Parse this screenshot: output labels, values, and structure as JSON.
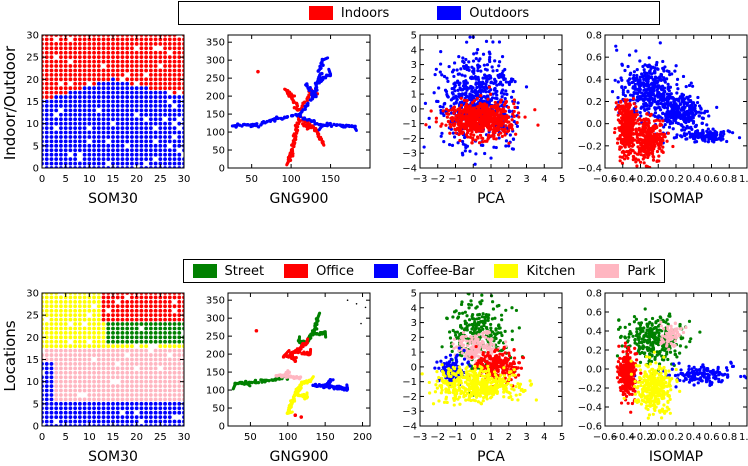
{
  "rows": [
    {
      "row_label": "Indoor/Outdoor",
      "legend": [
        {
          "label": "Indoors",
          "color": "#ff0000"
        },
        {
          "label": "Outdoors",
          "color": "#0000ff"
        }
      ]
    },
    {
      "row_label": "Locations",
      "legend": [
        {
          "label": "Street",
          "color": "#008000"
        },
        {
          "label": "Office",
          "color": "#ff0000"
        },
        {
          "label": "Coffee-Bar",
          "color": "#0000ff"
        },
        {
          "label": "Kitchen",
          "color": "#ffff00"
        },
        {
          "label": "Park",
          "color": "#ffb6c1"
        }
      ]
    }
  ],
  "chart_data": [
    {
      "type": "scatter",
      "row": 0,
      "xlabel": "SOM30",
      "ylabel": "",
      "xlim": [
        0,
        30
      ],
      "ylim": [
        0,
        30
      ],
      "xticks": [
        "0",
        "5",
        "10",
        "15",
        "20",
        "25",
        "30"
      ],
      "yticks": [
        "0",
        "5",
        "10",
        "15",
        "20",
        "25",
        "30"
      ],
      "series": [
        {
          "name": "Indoors",
          "color": "#ff0000",
          "region": "upper grid cells (y above boundary ~15 at x=0, ~20 at x=15, ~16 at x=30)"
        },
        {
          "name": "Outdoors",
          "color": "#0000ff",
          "region": "lower grid cells"
        }
      ]
    },
    {
      "type": "scatter",
      "row": 0,
      "xlabel": "GNG900",
      "ylabel": "",
      "xlim": [
        20,
        200
      ],
      "ylim": [
        0,
        370
      ],
      "xticks": [
        "50",
        "100",
        "150"
      ],
      "yticks": [
        "0",
        "50",
        "100",
        "150",
        "200",
        "250",
        "300",
        "350"
      ],
      "series": [
        {
          "name": "Indoors",
          "color": "#ff0000",
          "branches": [
            [
              [
                110,
                140
              ],
              [
                105,
                90
              ],
              [
                100,
                40
              ],
              [
                97,
                20
              ]
            ],
            [
              [
                110,
                160
              ],
              [
                100,
                200
              ],
              [
                95,
                215
              ]
            ],
            [
              [
                112,
                160
              ],
              [
                125,
                215
              ],
              [
                130,
                205
              ]
            ],
            [
              [
                115,
                135
              ],
              [
                130,
                110
              ],
              [
                140,
                70
              ]
            ],
            [
              [
                115,
                120
              ],
              [
                125,
                115
              ]
            ]
          ],
          "points": [
            [
              58,
              268
            ]
          ]
        },
        {
          "name": "Outdoors",
          "color": "#0000ff",
          "branches": [
            [
              [
                110,
                150
              ],
              [
                80,
                135
              ],
              [
                55,
                120
              ],
              [
                30,
                118
              ]
            ],
            [
              [
                110,
                150
              ],
              [
                130,
                200
              ],
              [
                135,
                250
              ],
              [
                140,
                300
              ]
            ],
            [
              [
                112,
                140
              ],
              [
                140,
                120
              ],
              [
                165,
                118
              ],
              [
                180,
                115
              ]
            ],
            [
              [
                130,
                200
              ],
              [
                120,
                230
              ]
            ],
            [
              [
                135,
                240
              ],
              [
                150,
                260
              ]
            ]
          ],
          "points": []
        }
      ]
    },
    {
      "type": "scatter",
      "row": 0,
      "xlabel": "PCA",
      "ylabel": "",
      "xlim": [
        -3,
        5
      ],
      "ylim": [
        -4,
        5
      ],
      "xticks": [
        "−3",
        "−2",
        "−1",
        "0",
        "1",
        "2",
        "3",
        "4",
        "5"
      ],
      "yticks": [
        "−4",
        "−3",
        "−2",
        "−1",
        "0",
        "1",
        "2",
        "3",
        "4",
        "5"
      ],
      "series": [
        {
          "name": "Outdoors",
          "color": "#0000ff",
          "clusters": [
            {
              "center": [
                0.3,
                0.5
              ],
              "spread": [
                1.0,
                1.5
              ],
              "n": 650
            }
          ]
        },
        {
          "name": "Indoors",
          "color": "#ff0000",
          "clusters": [
            {
              "center": [
                0.4,
                -0.7
              ],
              "spread": [
                0.9,
                0.6
              ],
              "n": 650
            }
          ]
        }
      ]
    },
    {
      "type": "scatter",
      "row": 0,
      "xlabel": "ISOMAP",
      "ylabel": "",
      "xlim": [
        -0.6,
        1.0
      ],
      "ylim": [
        -0.4,
        0.8
      ],
      "xticks": [
        "−0.6",
        "−0.4",
        "−0.2",
        "0.0",
        "0.2",
        "0.4",
        "0.6",
        "0.8",
        "1.0"
      ],
      "yticks": [
        "−0.4",
        "−0.2",
        "0.0",
        "0.2",
        "0.4",
        "0.6",
        "0.8"
      ],
      "series": [
        {
          "name": "Outdoors",
          "color": "#0000ff",
          "clusters": [
            {
              "center": [
                -0.1,
                0.3
              ],
              "spread": [
                0.17,
                0.12
              ],
              "n": 380
            },
            {
              "center": [
                0.25,
                0.1
              ],
              "spread": [
                0.14,
                0.08
              ],
              "n": 260
            },
            {
              "center": [
                0.55,
                -0.1
              ],
              "spread": [
                0.14,
                0.03
              ],
              "n": 120
            }
          ]
        },
        {
          "name": "Indoors",
          "color": "#ff0000",
          "clusters": [
            {
              "center": [
                -0.35,
                -0.05
              ],
              "spread": [
                0.05,
                0.12
              ],
              "n": 320
            },
            {
              "center": [
                -0.1,
                -0.15
              ],
              "spread": [
                0.08,
                0.1
              ],
              "n": 280
            }
          ]
        }
      ]
    },
    {
      "type": "scatter",
      "row": 1,
      "xlabel": "SOM30",
      "ylabel": "",
      "xlim": [
        0,
        30
      ],
      "ylim": [
        0,
        30
      ],
      "xticks": [
        "0",
        "5",
        "10",
        "15",
        "20",
        "25",
        "30"
      ],
      "yticks": [
        "0",
        "5",
        "10",
        "15",
        "20",
        "25",
        "30"
      ],
      "series": [
        {
          "name": "Street",
          "color": "#008000",
          "region": "right-middle band (x 14-30, y 19-25)"
        },
        {
          "name": "Office",
          "color": "#ff0000",
          "region": "upper right (x 13-30, y 24-30)"
        },
        {
          "name": "Coffee-Bar",
          "color": "#0000ff",
          "region": "bottom and left edge (y below ~5, x below ~2)"
        },
        {
          "name": "Kitchen",
          "color": "#ffff00",
          "region": "upper left (x 0-12, y 18-30)"
        },
        {
          "name": "Park",
          "color": "#ffb6c1",
          "region": "middle band (y 6-17)"
        }
      ]
    },
    {
      "type": "scatter",
      "row": 1,
      "xlabel": "GNG900",
      "ylabel": "",
      "xlim": [
        20,
        210
      ],
      "ylim": [
        0,
        370
      ],
      "xticks": [
        "50",
        "100",
        "150",
        "200"
      ],
      "yticks": [
        "0",
        "50",
        "100",
        "150",
        "200",
        "250",
        "300",
        "350"
      ],
      "series": [
        {
          "name": "Street",
          "color": "#008000",
          "branches": [
            [
              [
                100,
                135
              ],
              [
                70,
                125
              ],
              [
                45,
                120
              ],
              [
                30,
                118
              ]
            ],
            [
              [
                125,
                230
              ],
              [
                135,
                260
              ],
              [
                140,
                300
              ]
            ],
            [
              [
                125,
                230
              ],
              [
                115,
                235
              ]
            ],
            [
              [
                135,
                255
              ],
              [
                150,
                260
              ]
            ]
          ],
          "points": []
        },
        {
          "name": "Office",
          "color": "#ff0000",
          "branches": [
            [
              [
                110,
                180
              ],
              [
                105,
                200
              ],
              [
                115,
                215
              ],
              [
                125,
                230
              ]
            ],
            [
              [
                110,
                190
              ],
              [
                95,
                195
              ]
            ],
            [
              [
                115,
                205
              ],
              [
                130,
                200
              ]
            ]
          ],
          "points": [
            [
              58,
              265
            ],
            [
              110,
              30
            ],
            [
              118,
              25
            ]
          ]
        },
        {
          "name": "Coffee-Bar",
          "color": "#0000ff",
          "branches": [
            [
              [
                135,
                115
              ],
              [
                150,
                110
              ],
              [
                165,
                108
              ],
              [
                180,
                102
              ]
            ],
            [
              [
                150,
                110
              ],
              [
                155,
                125
              ]
            ]
          ],
          "points": []
        },
        {
          "name": "Kitchen",
          "color": "#ffff00",
          "branches": [
            [
              [
                120,
                120
              ],
              [
                110,
                90
              ],
              [
                105,
                60
              ],
              [
                100,
                35
              ]
            ],
            [
              [
                110,
                90
              ],
              [
                125,
                80
              ]
            ],
            [
              [
                120,
                120
              ],
              [
                130,
                125
              ]
            ]
          ],
          "points": []
        },
        {
          "name": "Park",
          "color": "#ffb6c1",
          "branches": [
            [
              [
                85,
                140
              ],
              [
                100,
                138
              ],
              [
                115,
                135
              ]
            ],
            [
              [
                95,
                140
              ],
              [
                100,
                150
              ]
            ]
          ],
          "points": []
        }
      ]
    },
    {
      "type": "scatter",
      "row": 1,
      "xlabel": "PCA",
      "ylabel": "",
      "xlim": [
        -3,
        5
      ],
      "ylim": [
        -4,
        5
      ],
      "xticks": [
        "−3",
        "−2",
        "−1",
        "0",
        "1",
        "2",
        "3",
        "4",
        "5"
      ],
      "yticks": [
        "−4",
        "−3",
        "−2",
        "−1",
        "0",
        "1",
        "2",
        "3",
        "4",
        "5"
      ],
      "series": [
        {
          "name": "Street",
          "color": "#008000",
          "clusters": [
            {
              "center": [
                0.3,
                2.2
              ],
              "spread": [
                0.8,
                1.3
              ],
              "n": 280
            }
          ]
        },
        {
          "name": "Park",
          "color": "#ffb6c1",
          "clusters": [
            {
              "center": [
                0.3,
                1.3
              ],
              "spread": [
                0.6,
                0.5
              ],
              "n": 160
            }
          ]
        },
        {
          "name": "Office",
          "color": "#ff0000",
          "clusters": [
            {
              "center": [
                1.3,
                0.0
              ],
              "spread": [
                0.6,
                0.5
              ],
              "n": 220
            }
          ]
        },
        {
          "name": "Coffee-Bar",
          "color": "#0000ff",
          "clusters": [
            {
              "center": [
                -1.2,
                -0.2
              ],
              "spread": [
                0.35,
                0.45
              ],
              "n": 140
            }
          ]
        },
        {
          "name": "Kitchen",
          "color": "#ffff00",
          "clusters": [
            {
              "center": [
                0.2,
                -1.2
              ],
              "spread": [
                1.1,
                0.55
              ],
              "n": 450
            }
          ]
        }
      ]
    },
    {
      "type": "scatter",
      "row": 1,
      "xlabel": "ISOMAP",
      "ylabel": "",
      "xlim": [
        -0.6,
        1.0
      ],
      "ylim": [
        -0.6,
        0.8
      ],
      "xticks": [
        "−0.6",
        "−0.4",
        "−0.2",
        "0.0",
        "0.2",
        "0.4",
        "0.6",
        "0.8",
        "1.0"
      ],
      "yticks": [
        "−0.6",
        "−0.4",
        "−0.2",
        "0.0",
        "0.2",
        "0.4",
        "0.6",
        "0.8"
      ],
      "series": [
        {
          "name": "Street",
          "color": "#008000",
          "clusters": [
            {
              "center": [
                -0.05,
                0.3
              ],
              "spread": [
                0.17,
                0.12
              ],
              "n": 280
            }
          ]
        },
        {
          "name": "Park",
          "color": "#ffb6c1",
          "clusters": [
            {
              "center": [
                0.15,
                0.35
              ],
              "spread": [
                0.06,
                0.06
              ],
              "n": 70
            }
          ]
        },
        {
          "name": "Coffee-Bar",
          "color": "#0000ff",
          "clusters": [
            {
              "center": [
                0.5,
                -0.05
              ],
              "spread": [
                0.18,
                0.05
              ],
              "n": 150
            }
          ]
        },
        {
          "name": "Office",
          "color": "#ff0000",
          "clusters": [
            {
              "center": [
                -0.35,
                -0.05
              ],
              "spread": [
                0.05,
                0.13
              ],
              "n": 260
            }
          ]
        },
        {
          "name": "Kitchen",
          "color": "#ffff00",
          "clusters": [
            {
              "center": [
                -0.05,
                -0.2
              ],
              "spread": [
                0.1,
                0.12
              ],
              "n": 300
            }
          ]
        }
      ]
    }
  ]
}
